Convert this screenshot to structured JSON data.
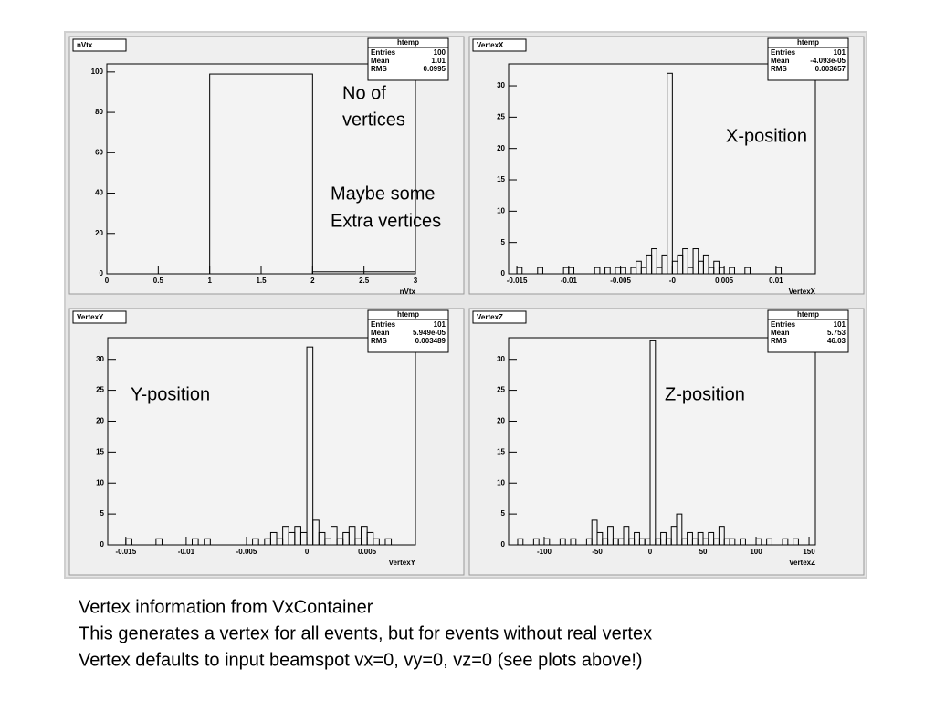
{
  "chart_data": [
    {
      "type": "histogram",
      "title": "nVtx",
      "x_label": "nVtx",
      "stats_title": "htemp",
      "stats": [
        [
          "Entries",
          "100"
        ],
        [
          "Mean",
          "1.01"
        ],
        [
          "RMS",
          "0.0995"
        ]
      ],
      "bins": [
        0,
        1,
        2,
        3
      ],
      "counts": [
        0,
        99,
        1
      ],
      "xlim": [
        0,
        3
      ],
      "xticks": [
        0,
        0.5,
        1,
        1.5,
        2,
        2.5,
        3
      ],
      "ylim": [
        0,
        104
      ],
      "yticks": [
        0,
        20,
        40,
        60,
        80,
        100
      ],
      "annotations": [
        [
          "No of",
          "vertices"
        ],
        [
          "Maybe some",
          "Extra vertices"
        ]
      ]
    },
    {
      "type": "histogram",
      "title": "VertexX",
      "x_label": "VertexX",
      "stats_title": "htemp",
      "stats": [
        [
          "Entries",
          "101"
        ],
        [
          "Mean",
          "-4.093e-05"
        ],
        [
          "RMS",
          "0.003657"
        ]
      ],
      "bins": [
        -0.0155,
        -0.015,
        -0.0145,
        -0.014,
        -0.0135,
        -0.013,
        -0.0125,
        -0.012,
        -0.0115,
        -0.011,
        -0.0105,
        -0.01,
        -0.0095,
        -0.009,
        -0.0085,
        -0.008,
        -0.0075,
        -0.007,
        -0.0065,
        -0.006,
        -0.0055,
        -0.005,
        -0.0045,
        -0.004,
        -0.0035,
        -0.003,
        -0.0025,
        -0.002,
        -0.0015,
        -0.001,
        -0.0005,
        0,
        0.0005,
        0.001,
        0.0015,
        0.002,
        0.0025,
        0.003,
        0.0035,
        0.004,
        0.0045,
        0.005,
        0.0055,
        0.006,
        0.0065,
        0.007,
        0.0075,
        0.008,
        0.0085,
        0.009,
        0.0095,
        0.01,
        0.0105,
        0.011,
        0.0115,
        0.012,
        0.0125,
        0.013,
        0.0135
      ],
      "counts": [
        0,
        1,
        0,
        0,
        0,
        1,
        0,
        0,
        0,
        0,
        1,
        1,
        0,
        0,
        0,
        0,
        1,
        0,
        1,
        0,
        1,
        1,
        0,
        1,
        2,
        1,
        3,
        4,
        1,
        3,
        32,
        2,
        3,
        4,
        1,
        4,
        2,
        3,
        1,
        2,
        1,
        0,
        1,
        0,
        0,
        1,
        0,
        0,
        0,
        0,
        0,
        1,
        0,
        0,
        0,
        0,
        0,
        0
      ],
      "xlim": [
        -0.0158,
        0.0138
      ],
      "xticks": [
        -0.015,
        -0.01,
        -0.005,
        {
          "value": 0,
          "label": "-0"
        },
        0.005,
        0.01
      ],
      "ylim": [
        0,
        33.5
      ],
      "yticks": [
        0,
        5,
        10,
        15,
        20,
        25,
        30
      ],
      "annotations": [
        [
          "X-position"
        ]
      ]
    },
    {
      "type": "histogram",
      "title": "VertexY",
      "x_label": "VertexY",
      "stats_title": "htemp",
      "stats": [
        [
          "Entries",
          "101"
        ],
        [
          "Mean",
          "5.949e-05"
        ],
        [
          "RMS",
          "0.003489"
        ]
      ],
      "bins": [
        -0.016,
        -0.0155,
        -0.015,
        -0.0145,
        -0.014,
        -0.0135,
        -0.013,
        -0.0125,
        -0.012,
        -0.0115,
        -0.011,
        -0.0105,
        -0.01,
        -0.0095,
        -0.009,
        -0.0085,
        -0.008,
        -0.0075,
        -0.007,
        -0.0065,
        -0.006,
        -0.0055,
        -0.005,
        -0.0045,
        -0.004,
        -0.0035,
        -0.003,
        -0.0025,
        -0.002,
        -0.0015,
        -0.001,
        -0.0005,
        0,
        0.0005,
        0.001,
        0.0015,
        0.002,
        0.0025,
        0.003,
        0.0035,
        0.004,
        0.0045,
        0.005,
        0.0055,
        0.006,
        0.0065,
        0.007,
        0.0075,
        0.008,
        0.0085
      ],
      "counts": [
        0,
        0,
        1,
        0,
        0,
        0,
        0,
        1,
        0,
        0,
        0,
        0,
        0,
        1,
        0,
        1,
        0,
        0,
        0,
        0,
        0,
        0,
        0,
        1,
        0,
        1,
        2,
        1,
        3,
        2,
        3,
        2,
        32,
        4,
        2,
        1,
        3,
        1,
        2,
        3,
        1,
        3,
        2,
        1,
        0,
        1,
        0,
        0,
        0
      ],
      "xlim": [
        -0.0165,
        0.009
      ],
      "xticks": [
        -0.015,
        -0.01,
        -0.005,
        0,
        0.005
      ],
      "ylim": [
        0,
        33.5
      ],
      "yticks": [
        0,
        5,
        10,
        15,
        20,
        25,
        30
      ],
      "annotations": [
        [
          "Y-position"
        ]
      ]
    },
    {
      "type": "histogram",
      "title": "VertexZ",
      "x_label": "VertexZ",
      "stats_title": "htemp",
      "stats": [
        [
          "Entries",
          "101"
        ],
        [
          "Mean",
          "5.753"
        ],
        [
          "RMS",
          "46.03"
        ]
      ],
      "bins": [
        -130,
        -125,
        -120,
        -115,
        -110,
        -105,
        -100,
        -95,
        -90,
        -85,
        -80,
        -75,
        -70,
        -65,
        -60,
        -55,
        -50,
        -45,
        -40,
        -35,
        -30,
        -25,
        -20,
        -15,
        -10,
        -5,
        0,
        5,
        10,
        15,
        20,
        25,
        30,
        35,
        40,
        45,
        50,
        55,
        60,
        65,
        70,
        75,
        80,
        85,
        90,
        95,
        100,
        105,
        110,
        115,
        120,
        125,
        130,
        135,
        140,
        145,
        150,
        155
      ],
      "counts": [
        0,
        1,
        0,
        0,
        1,
        0,
        1,
        0,
        0,
        1,
        0,
        1,
        0,
        0,
        1,
        4,
        2,
        1,
        3,
        1,
        1,
        3,
        1,
        2,
        1,
        1,
        33,
        1,
        2,
        1,
        3,
        5,
        1,
        2,
        1,
        2,
        1,
        2,
        1,
        3,
        1,
        1,
        0,
        1,
        0,
        0,
        1,
        0,
        1,
        0,
        0,
        1,
        0,
        1,
        0,
        0,
        0
      ],
      "xlim": [
        -133.6,
        156
      ],
      "xticks": [
        -100,
        -50,
        0,
        50,
        100,
        150
      ],
      "ylim": [
        0,
        33.5
      ],
      "yticks": [
        0,
        5,
        10,
        15,
        20,
        25,
        30
      ],
      "annotations": [
        [
          "Z-position"
        ]
      ]
    }
  ],
  "caption": [
    "Vertex information from VxContainer",
    "This generates a vertex for all events, but for events without real vertex",
    "Vertex defaults to input beamspot vx=0, vy=0, vz=0 (see plots above!)"
  ]
}
